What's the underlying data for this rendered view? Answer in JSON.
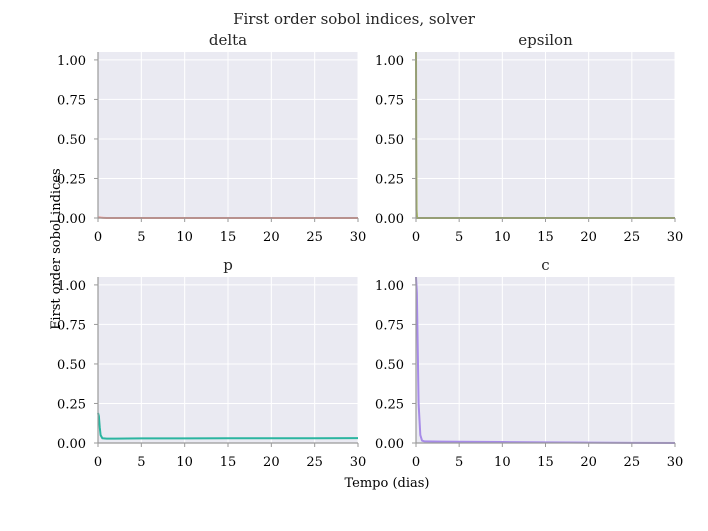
{
  "chart_data": {
    "type": "line",
    "title": "First order sobol indices, solver",
    "xlabel": "Tempo (dias)",
    "ylabel": "First order sobol indices",
    "xlim": [
      0,
      30
    ],
    "ylim": [
      0,
      1.05
    ],
    "xticks": [
      "0",
      "5",
      "10",
      "15",
      "20",
      "25",
      "30"
    ],
    "yticks": [
      "0.00",
      "0.25",
      "0.50",
      "0.75",
      "1.00"
    ],
    "grid": true,
    "background": "#eaeaf2",
    "panels": [
      {
        "title": "delta",
        "color": "#e8827b",
        "x": [
          0,
          0.1,
          0.3,
          0.6,
          1,
          30
        ],
        "y": [
          0.0,
          0.003,
          0.002,
          0.001,
          0.0,
          0.0
        ]
      },
      {
        "title": "epsilon",
        "color": "#8fa63a",
        "x": [
          0,
          0.02,
          0.05,
          0.1,
          30
        ],
        "y": [
          1.05,
          0.5,
          0.05,
          0.0,
          0.0
        ]
      },
      {
        "title": "p",
        "color": "#2bb5a0",
        "x": [
          0,
          0.1,
          0.2,
          0.3,
          0.5,
          1,
          2,
          5,
          10,
          15,
          20,
          25,
          30
        ],
        "y": [
          0.19,
          0.17,
          0.1,
          0.05,
          0.03,
          0.028,
          0.028,
          0.029,
          0.029,
          0.03,
          0.03,
          0.03,
          0.031
        ]
      },
      {
        "title": "c",
        "color": "#a78be8",
        "x": [
          0,
          0.1,
          0.2,
          0.3,
          0.5,
          0.7,
          1,
          3,
          5,
          10,
          15,
          20,
          25,
          30
        ],
        "y": [
          1.05,
          0.95,
          0.6,
          0.25,
          0.05,
          0.015,
          0.01,
          0.009,
          0.008,
          0.006,
          0.004,
          0.002,
          0.001,
          0.0
        ]
      }
    ]
  }
}
